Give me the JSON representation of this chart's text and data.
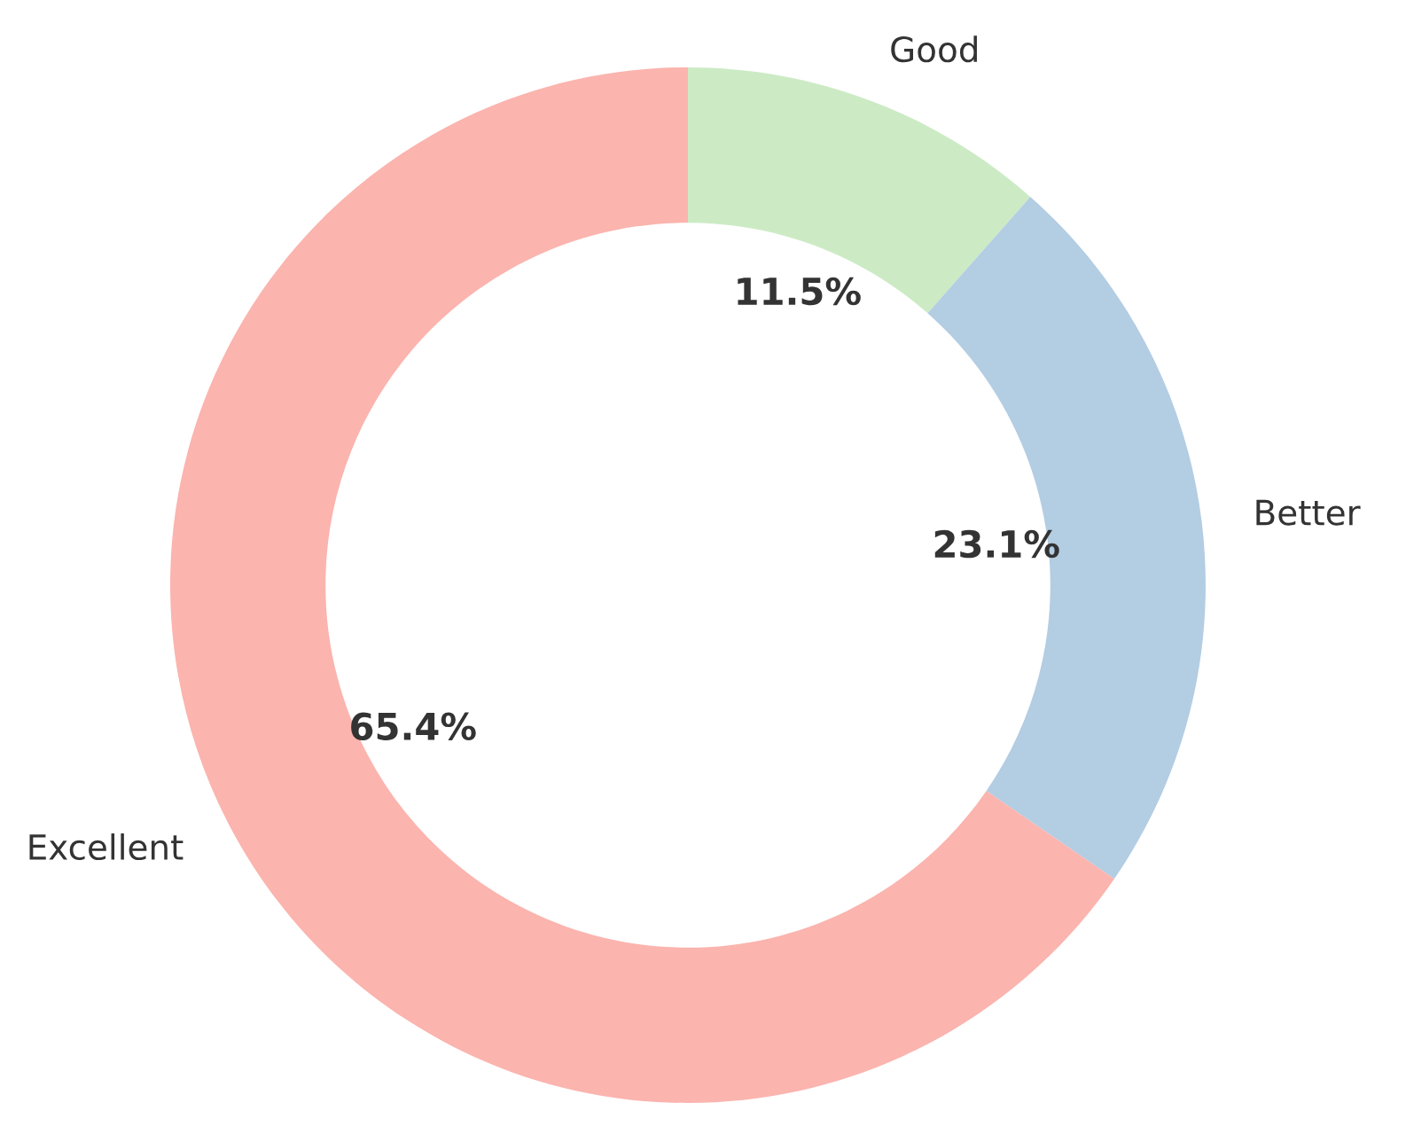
{
  "chart_data": {
    "type": "donut",
    "categories": [
      "Good",
      "Better",
      "Excellent"
    ],
    "values": [
      11.5,
      23.1,
      65.4
    ],
    "value_labels": [
      "11.5%",
      "23.1%",
      "65.4%"
    ],
    "colors": [
      "#ccebc5",
      "#b3cde3",
      "#fbb4ae"
    ]
  }
}
